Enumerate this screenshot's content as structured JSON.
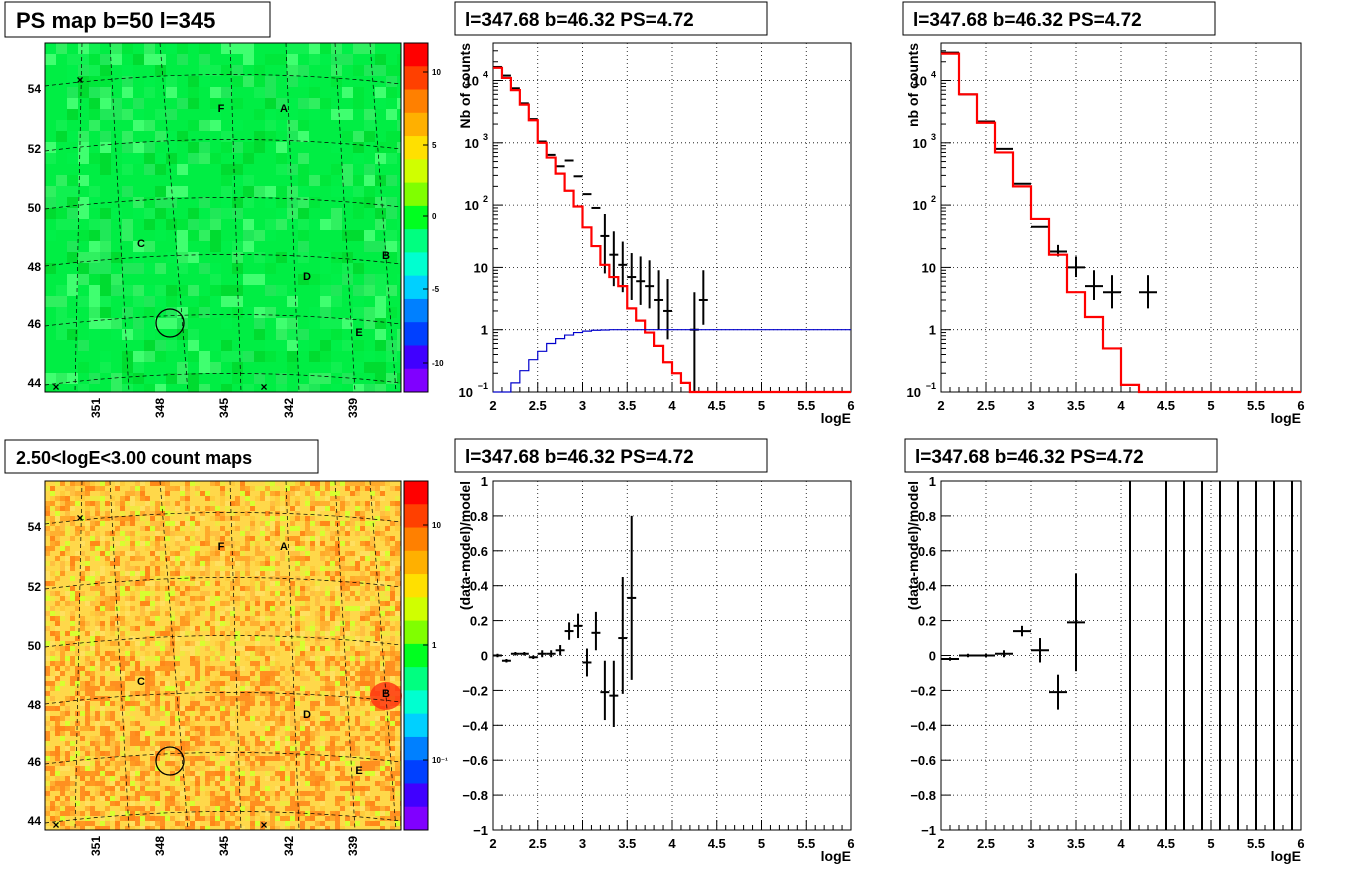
{
  "canvas": {
    "background": "#ffffff",
    "axis_color": "#000000"
  },
  "colors": {
    "data": "#000000",
    "model": "#ff0000",
    "threshold": "#0000cc",
    "grid": "#000000"
  },
  "maps": [
    {
      "title": "PS map b=50 l=345",
      "kind": "significance",
      "y_ticks": [
        "54",
        "52",
        "50",
        "48",
        "46",
        "44"
      ],
      "x_ticks": [
        "351",
        "348",
        "345",
        "342",
        "339"
      ],
      "z_ticks": [
        "10",
        "5",
        "0",
        "-5",
        "-10"
      ],
      "source_labels": [
        "F",
        "A",
        "C",
        "B",
        "D",
        "E"
      ],
      "palette": [
        "#ff0000",
        "#ff4000",
        "#ff8000",
        "#ffb000",
        "#ffe000",
        "#d0ff00",
        "#80ff00",
        "#00ff20",
        "#00ff80",
        "#00ffd0",
        "#00d0ff",
        "#0080ff",
        "#0040ff",
        "#4000ff",
        "#8000ff"
      ]
    },
    {
      "title": "2.50<logE<3.00 count maps",
      "kind": "counts",
      "y_ticks": [
        "54",
        "52",
        "50",
        "48",
        "46",
        "44"
      ],
      "x_ticks": [
        "351",
        "348",
        "345",
        "342",
        "339"
      ],
      "z_ticks": [
        "10",
        "1",
        "10⁻¹"
      ],
      "source_labels": [
        "F",
        "A",
        "C",
        "B",
        "D",
        "E"
      ],
      "palette": [
        "#ff0000",
        "#ff4000",
        "#ff8000",
        "#ffb000",
        "#ffe000",
        "#d0ff00",
        "#80ff00",
        "#00ff20",
        "#00ff80",
        "#00ffd0",
        "#00d0ff",
        "#0080ff",
        "#0040ff",
        "#4000ff",
        "#8000ff"
      ]
    }
  ],
  "chart_data": [
    {
      "panel": "top-middle",
      "type": "line",
      "title": "l=347.68 b=46.32 PS=4.72",
      "xlabel": "logE",
      "ylabel": "Nb of counts",
      "xlim": [
        2,
        6
      ],
      "ylim": [
        0.1,
        40000
      ],
      "yscale": "log",
      "grid": true,
      "x_ticks": [
        "2",
        "2.5",
        "3",
        "3.5",
        "4",
        "4.5",
        "5",
        "5.5",
        "6"
      ],
      "y_ticks": [
        {
          "v": 0.1,
          "t": "10",
          "sup": "−1"
        },
        {
          "v": 1,
          "t": "1"
        },
        {
          "v": 10,
          "t": "10"
        },
        {
          "v": 100,
          "t": "10",
          "sup": "2"
        },
        {
          "v": 1000,
          "t": "10",
          "sup": "3"
        },
        {
          "v": 10000,
          "t": "10",
          "sup": "4"
        }
      ],
      "series": [
        {
          "kind": "points",
          "x": [
            2.05,
            2.15,
            2.25,
            2.35,
            2.45,
            2.55,
            2.65,
            2.75,
            2.85,
            2.95,
            3.05,
            3.15,
            3.25,
            3.35,
            3.45,
            3.55,
            3.65,
            3.75,
            3.85,
            3.95,
            4.25,
            4.35
          ],
          "y": [
            16500,
            12000,
            7500,
            4300,
            2400,
            1050,
            640,
            420,
            520,
            290,
            150,
            90,
            32,
            16,
            11,
            7,
            6,
            5,
            3,
            2,
            1,
            3
          ],
          "yerr_lo": [
            0,
            0,
            0,
            0,
            0,
            0,
            0,
            0,
            0,
            0,
            0,
            0,
            24,
            11,
            7,
            4,
            3.5,
            2.8,
            2,
            1.3,
            0.9,
            1.8
          ],
          "yerr_hi": [
            0,
            0,
            0,
            0,
            0,
            0,
            0,
            0,
            0,
            0,
            0,
            0,
            40,
            22,
            15,
            10,
            9,
            8,
            6,
            4.5,
            3,
            6
          ],
          "xerr": 0.05
        },
        {
          "kind": "step",
          "edges": [
            2.0,
            2.1,
            2.2,
            2.3,
            2.4,
            2.5,
            2.6,
            2.7,
            2.8,
            2.9,
            3.0,
            3.1,
            3.2,
            3.3,
            3.4,
            3.5,
            3.6,
            3.7,
            3.8,
            3.9,
            4.0,
            4.1,
            4.2,
            4.3,
            6.0
          ],
          "values": [
            16000,
            11000,
            7000,
            4100,
            2300,
            1000,
            580,
            320,
            170,
            95,
            44,
            22,
            11,
            7,
            5,
            2.2,
            1.4,
            0.9,
            0.55,
            0.3,
            0.2,
            0.14,
            0.1,
            0.1
          ]
        },
        {
          "kind": "step",
          "edges": [
            2.0,
            2.1,
            2.2,
            2.3,
            2.4,
            2.5,
            2.6,
            2.7,
            2.8,
            2.9,
            3.0,
            3.1,
            3.2,
            3.3,
            3.4,
            3.5,
            6.0
          ],
          "values": [
            0.08,
            0.1,
            0.14,
            0.22,
            0.33,
            0.45,
            0.6,
            0.72,
            0.82,
            0.9,
            0.95,
            0.98,
            0.99,
            1.0,
            1.0,
            1.0
          ]
        }
      ]
    },
    {
      "panel": "top-right",
      "type": "line",
      "title": "l=347.68 b=46.32 PS=4.72",
      "xlabel": "logE",
      "ylabel": "nb of counts",
      "xlim": [
        2,
        6
      ],
      "ylim": [
        0.1,
        40000
      ],
      "yscale": "log",
      "grid": true,
      "x_ticks": [
        "2",
        "2.5",
        "3",
        "3.5",
        "4",
        "4.5",
        "5",
        "5.5",
        "6"
      ],
      "y_ticks": [
        {
          "v": 0.1,
          "t": "10",
          "sup": "−1"
        },
        {
          "v": 1,
          "t": "1"
        },
        {
          "v": 10,
          "t": "10"
        },
        {
          "v": 100,
          "t": "10",
          "sup": "2"
        },
        {
          "v": 1000,
          "t": "10",
          "sup": "3"
        },
        {
          "v": 10000,
          "t": "10",
          "sup": "4"
        }
      ],
      "series": [
        {
          "kind": "points",
          "x": [
            2.1,
            2.3,
            2.5,
            2.7,
            2.9,
            3.1,
            3.3,
            3.5,
            3.7,
            3.9,
            4.3
          ],
          "y": [
            28000,
            6000,
            2200,
            800,
            220,
            45,
            18,
            10,
            5,
            4,
            4
          ],
          "yerr_lo": [
            0,
            0,
            0,
            0,
            0,
            0,
            3,
            3,
            2,
            1.8,
            1.8
          ],
          "yerr_hi": [
            0,
            0,
            0,
            0,
            0,
            0,
            5,
            5,
            4,
            3.5,
            3.5
          ],
          "xerr": 0.1
        },
        {
          "kind": "step",
          "edges": [
            2.0,
            2.2,
            2.4,
            2.6,
            2.8,
            3.0,
            3.2,
            3.4,
            3.6,
            3.8,
            4.0,
            4.2,
            4.4,
            6.0
          ],
          "values": [
            27000,
            6000,
            2100,
            700,
            200,
            60,
            16,
            4,
            1.6,
            0.5,
            0.13,
            0.1,
            0.1
          ]
        }
      ]
    },
    {
      "panel": "bottom-middle",
      "type": "scatter",
      "title": "l=347.68 b=46.32 PS=4.72",
      "xlabel": "logE",
      "ylabel": "(data-model)/model",
      "xlim": [
        2,
        6
      ],
      "ylim": [
        -1,
        1
      ],
      "yscale": "linear",
      "grid": true,
      "x_ticks": [
        "2",
        "2.5",
        "3",
        "3.5",
        "4",
        "4.5",
        "5",
        "5.5",
        "6"
      ],
      "y_ticks": [
        {
          "v": -1,
          "t": "−1"
        },
        {
          "v": -0.8,
          "t": "−0.8"
        },
        {
          "v": -0.6,
          "t": "−0.6"
        },
        {
          "v": -0.4,
          "t": "−0.4"
        },
        {
          "v": -0.2,
          "t": "−0.2"
        },
        {
          "v": 0,
          "t": "0"
        },
        {
          "v": 0.2,
          "t": "0.2"
        },
        {
          "v": 0.4,
          "t": "0.4"
        },
        {
          "v": 0.6,
          "t": "0.6"
        },
        {
          "v": 0.8,
          "t": "0.8"
        },
        {
          "v": 1,
          "t": "1"
        }
      ],
      "series": [
        {
          "kind": "points",
          "x": [
            2.05,
            2.15,
            2.25,
            2.35,
            2.45,
            2.55,
            2.65,
            2.75,
            2.85,
            2.95,
            3.05,
            3.15,
            3.25,
            3.35,
            3.45,
            3.55
          ],
          "y": [
            0.0,
            -0.03,
            0.01,
            0.01,
            -0.01,
            0.01,
            0.01,
            0.03,
            0.14,
            0.17,
            -0.04,
            0.13,
            -0.21,
            -0.23,
            0.1,
            0.33
          ],
          "yerr_lo": [
            0.01,
            0.01,
            0.01,
            0.01,
            0.01,
            0.02,
            0.02,
            0.03,
            0.05,
            0.07,
            0.08,
            0.1,
            0.16,
            0.18,
            0.32,
            0.47
          ],
          "yerr_hi": [
            0.01,
            0.01,
            0.01,
            0.01,
            0.01,
            0.02,
            0.02,
            0.03,
            0.05,
            0.07,
            0.08,
            0.12,
            0.18,
            0.2,
            0.35,
            0.47
          ],
          "xerr": 0.05
        }
      ]
    },
    {
      "panel": "bottom-right",
      "type": "scatter",
      "title": "l=347.68 b=46.32 PS=4.72",
      "xlabel": "logE",
      "ylabel": "(data-model)/model",
      "xlim": [
        2,
        6
      ],
      "ylim": [
        -1,
        1
      ],
      "yscale": "linear",
      "grid": true,
      "x_ticks": [
        "2",
        "2.5",
        "3",
        "3.5",
        "4",
        "4.5",
        "5",
        "5.5",
        "6"
      ],
      "y_ticks": [
        {
          "v": -1,
          "t": "−1"
        },
        {
          "v": -0.8,
          "t": "−0.8"
        },
        {
          "v": -0.6,
          "t": "−0.6"
        },
        {
          "v": -0.4,
          "t": "−0.4"
        },
        {
          "v": -0.2,
          "t": "−0.2"
        },
        {
          "v": 0,
          "t": "0"
        },
        {
          "v": 0.2,
          "t": "0.2"
        },
        {
          "v": 0.4,
          "t": "0.4"
        },
        {
          "v": 0.6,
          "t": "0.6"
        },
        {
          "v": 0.8,
          "t": "0.8"
        },
        {
          "v": 1,
          "t": "1"
        }
      ],
      "series": [
        {
          "kind": "points",
          "x": [
            2.1,
            2.3,
            2.5,
            2.7,
            2.9,
            3.1,
            3.3,
            3.5
          ],
          "y": [
            -0.02,
            0.0,
            0.0,
            0.01,
            0.14,
            0.03,
            -0.21,
            0.19
          ],
          "yerr_lo": [
            0.01,
            0.01,
            0.01,
            0.02,
            0.03,
            0.07,
            0.1,
            0.28
          ],
          "yerr_hi": [
            0.01,
            0.01,
            0.01,
            0.02,
            0.03,
            0.07,
            0.1,
            0.28
          ],
          "xerr": 0.1
        },
        {
          "kind": "vlines",
          "x": [
            4.1,
            4.5,
            4.7,
            4.9,
            5.1,
            5.3,
            5.5,
            5.7,
            5.9
          ]
        }
      ]
    }
  ]
}
